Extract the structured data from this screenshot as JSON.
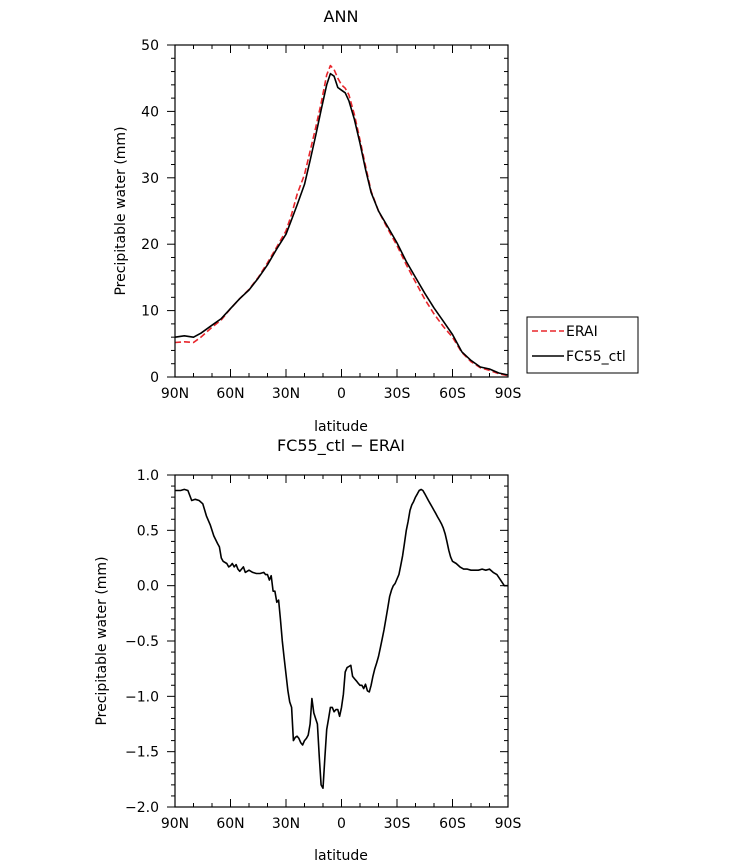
{
  "chart_data": [
    {
      "type": "line",
      "title": "ANN",
      "xlabel": "latitude",
      "ylabel": "Precipitable water (mm)",
      "xlim": [
        -90,
        90
      ],
      "ylim": [
        0,
        50
      ],
      "x_ticks": [
        -90,
        -60,
        -30,
        0,
        30,
        60,
        90
      ],
      "x_tick_labels": [
        "90N",
        "60N",
        "30N",
        "0",
        "30S",
        "60S",
        "90S"
      ],
      "y_ticks": [
        0,
        10,
        20,
        30,
        40,
        50
      ],
      "y_tick_labels": [
        "0",
        "10",
        "20",
        "30",
        "40",
        "50"
      ],
      "legend_position": "right",
      "series": [
        {
          "name": "ERAI",
          "color": "#e8262c",
          "dash": "dashed",
          "x": [
            -90,
            -85,
            -80,
            -76,
            -70,
            -65,
            -60,
            -55,
            -50,
            -45,
            -40,
            -35,
            -30,
            -27,
            -24,
            -20,
            -17,
            -14,
            -11,
            -8,
            -6,
            -4,
            -2,
            0,
            2,
            4,
            7,
            10,
            13,
            16,
            20,
            25,
            30,
            35,
            40,
            45,
            50,
            55,
            60,
            65,
            70,
            75,
            80,
            85,
            90
          ],
          "y": [
            5.2,
            5.3,
            5.2,
            6.0,
            7.5,
            8.6,
            10.3,
            11.8,
            13.2,
            15.0,
            17.2,
            19.6,
            22.0,
            24.5,
            27.5,
            30.5,
            34.0,
            37.5,
            41.2,
            45.5,
            46.9,
            46.3,
            45.0,
            44.0,
            43.5,
            42.5,
            39.5,
            35.7,
            31.8,
            28.0,
            25.0,
            22.3,
            19.8,
            16.9,
            14.3,
            11.7,
            9.5,
            7.6,
            6.0,
            3.7,
            2.3,
            1.4,
            1.0,
            0.5,
            0.2
          ]
        },
        {
          "name": "FC55_ctl",
          "color": "#000000",
          "dash": "solid",
          "x": [
            -90,
            -85,
            -80,
            -76,
            -70,
            -65,
            -60,
            -55,
            -50,
            -45,
            -40,
            -35,
            -30,
            -27,
            -24,
            -20,
            -17,
            -14,
            -11,
            -8,
            -6,
            -4,
            -2,
            0,
            2,
            4,
            7,
            10,
            13,
            16,
            20,
            25,
            30,
            35,
            40,
            45,
            50,
            55,
            60,
            65,
            70,
            75,
            80,
            85,
            90
          ],
          "y": [
            6.0,
            6.2,
            6.0,
            6.6,
            7.8,
            8.8,
            10.3,
            11.8,
            13.1,
            14.9,
            16.9,
            19.3,
            21.5,
            23.7,
            25.9,
            29.0,
            32.6,
            36.3,
            40.2,
            44.0,
            45.7,
            45.3,
            43.6,
            43.2,
            42.8,
            41.6,
            38.8,
            35.2,
            31.3,
            27.8,
            25.0,
            22.6,
            20.2,
            17.4,
            15.0,
            12.6,
            10.4,
            8.4,
            6.4,
            3.8,
            2.5,
            1.5,
            1.2,
            0.6,
            0.3
          ]
        }
      ]
    },
    {
      "type": "line",
      "title": "FC55_ctl − ERAI",
      "xlabel": "latitude",
      "ylabel": "Precipitable water (mm)",
      "xlim": [
        -90,
        90
      ],
      "ylim": [
        -2.0,
        1.0
      ],
      "x_ticks": [
        -90,
        -60,
        -30,
        0,
        30,
        60,
        90
      ],
      "x_tick_labels": [
        "90N",
        "60N",
        "30N",
        "0",
        "30S",
        "60S",
        "90S"
      ],
      "y_ticks": [
        -2.0,
        -1.5,
        -1.0,
        -0.5,
        0.0,
        0.5,
        1.0
      ],
      "y_tick_labels": [
        "−2.0",
        "−1.5",
        "−1.0",
        "−0.5",
        "0.0",
        "0.5",
        "1.0"
      ],
      "series": [
        {
          "color": "#000000",
          "dash": "solid",
          "x": [
            -90,
            -87,
            -85,
            -83,
            -81,
            -79,
            -77,
            -75,
            -73,
            -71,
            -69,
            -67,
            -66,
            -65,
            -64,
            -62,
            -61,
            -60,
            -59,
            -58,
            -57,
            -56,
            -55,
            -53,
            -52,
            -50,
            -48,
            -46,
            -44,
            -42,
            -41,
            -40,
            -39,
            -38,
            -37,
            -36,
            -35,
            -34,
            -33,
            -32,
            -31,
            -30,
            -29,
            -28,
            -27,
            -26,
            -25,
            -24,
            -23,
            -22,
            -21,
            -20,
            -19,
            -18,
            -17,
            -16,
            -15,
            -14,
            -13,
            -12,
            -11,
            -10,
            -9,
            -8,
            -7,
            -6,
            -5,
            -4,
            -3,
            -2,
            -1,
            0,
            1,
            2,
            3,
            4,
            5,
            6,
            7,
            8,
            9,
            10,
            11,
            12,
            13,
            14,
            15,
            16,
            17,
            18,
            19,
            20,
            21,
            22,
            23,
            24,
            25,
            26,
            27,
            28,
            29,
            30,
            31,
            32,
            33,
            34,
            35,
            36,
            37,
            38,
            39,
            40,
            41,
            42,
            43,
            44,
            45,
            46,
            47,
            48,
            49,
            50,
            51,
            52,
            53,
            54,
            55,
            56,
            57,
            58,
            59,
            60,
            62,
            64,
            66,
            68,
            70,
            72,
            74,
            76,
            78,
            80,
            82,
            84,
            86,
            88,
            90
          ],
          "y": [
            0.86,
            0.86,
            0.87,
            0.86,
            0.77,
            0.78,
            0.77,
            0.74,
            0.63,
            0.55,
            0.45,
            0.38,
            0.35,
            0.25,
            0.22,
            0.2,
            0.17,
            0.18,
            0.2,
            0.17,
            0.19,
            0.15,
            0.13,
            0.17,
            0.12,
            0.14,
            0.12,
            0.11,
            0.11,
            0.12,
            0.1,
            0.1,
            0.05,
            0.09,
            -0.05,
            -0.05,
            -0.15,
            -0.13,
            -0.3,
            -0.5,
            -0.65,
            -0.8,
            -0.95,
            -1.05,
            -1.1,
            -1.4,
            -1.37,
            -1.36,
            -1.38,
            -1.42,
            -1.44,
            -1.4,
            -1.38,
            -1.35,
            -1.25,
            -1.02,
            -1.15,
            -1.2,
            -1.25,
            -1.55,
            -1.8,
            -1.83,
            -1.55,
            -1.3,
            -1.2,
            -1.1,
            -1.1,
            -1.14,
            -1.12,
            -1.12,
            -1.18,
            -1.1,
            -0.98,
            -0.78,
            -0.74,
            -0.73,
            -0.72,
            -0.82,
            -0.84,
            -0.86,
            -0.88,
            -0.9,
            -0.9,
            -0.93,
            -0.89,
            -0.95,
            -0.96,
            -0.9,
            -0.82,
            -0.75,
            -0.7,
            -0.64,
            -0.56,
            -0.48,
            -0.4,
            -0.3,
            -0.2,
            -0.1,
            -0.04,
            0.0,
            0.02,
            0.06,
            0.1,
            0.18,
            0.27,
            0.38,
            0.5,
            0.58,
            0.68,
            0.73,
            0.76,
            0.8,
            0.83,
            0.86,
            0.87,
            0.86,
            0.83,
            0.8,
            0.77,
            0.74,
            0.71,
            0.68,
            0.65,
            0.62,
            0.59,
            0.56,
            0.52,
            0.47,
            0.4,
            0.32,
            0.26,
            0.22,
            0.2,
            0.17,
            0.15,
            0.15,
            0.14,
            0.14,
            0.14,
            0.15,
            0.14,
            0.15,
            0.12,
            0.1,
            0.05,
            0.0,
            0.0
          ]
        }
      ]
    }
  ]
}
